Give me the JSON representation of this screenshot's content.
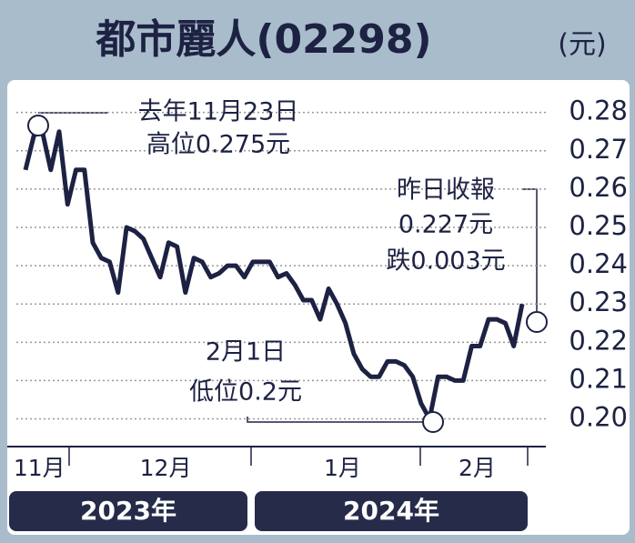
{
  "chart_data": {
    "type": "line",
    "title": "都市麗人(02298)",
    "unit": "(元)",
    "color": "#1d2243",
    "values": [
      0.265,
      0.274,
      0.275,
      0.265,
      0.275,
      0.256,
      0.265,
      0.265,
      0.246,
      0.242,
      0.241,
      0.233,
      0.25,
      0.249,
      0.247,
      0.242,
      0.237,
      0.246,
      0.245,
      0.233,
      0.242,
      0.241,
      0.237,
      0.238,
      0.24,
      0.24,
      0.237,
      0.241,
      0.241,
      0.241,
      0.237,
      0.238,
      0.235,
      0.231,
      0.231,
      0.226,
      0.234,
      0.23,
      0.225,
      0.217,
      0.213,
      0.211,
      0.211,
      0.215,
      0.215,
      0.214,
      0.211,
      0.204,
      0.2,
      0.211,
      0.211,
      0.21,
      0.21,
      0.219,
      0.219,
      0.226,
      0.226,
      0.225,
      0.219,
      0.23
    ],
    "categories": [
      null,
      "11月",
      null,
      null,
      null,
      null,
      null,
      null,
      null,
      null,
      null,
      null,
      null,
      null,
      null,
      null,
      "12月",
      null,
      null,
      null,
      null,
      null,
      null,
      null,
      null,
      null,
      null,
      null,
      null,
      null,
      null,
      null,
      null,
      null,
      null,
      null,
      null,
      "1月",
      null,
      null,
      null,
      null,
      null,
      null,
      null,
      null,
      null,
      null,
      null,
      null,
      null,
      null,
      null,
      "2月",
      null,
      null,
      null,
      null,
      null,
      null
    ],
    "years": [
      "2023年",
      "2024年"
    ],
    "ylim": [
      0.193,
      0.288
    ],
    "yticks": [
      {
        "value": 0.2,
        "label": "0.20"
      },
      0.21,
      0.22,
      0.23,
      0.24,
      0.25,
      0.26,
      0.27,
      0.28
    ],
    "grid": true,
    "annotations": [
      {
        "lines": [
          "去年11月23日",
          "高位0.275元"
        ]
      },
      {
        "lines": [
          "2月1日",
          "低位0.2元"
        ]
      },
      {
        "lines": [
          "昨日收報",
          "0.227元",
          "跌0.003元"
        ]
      }
    ]
  }
}
